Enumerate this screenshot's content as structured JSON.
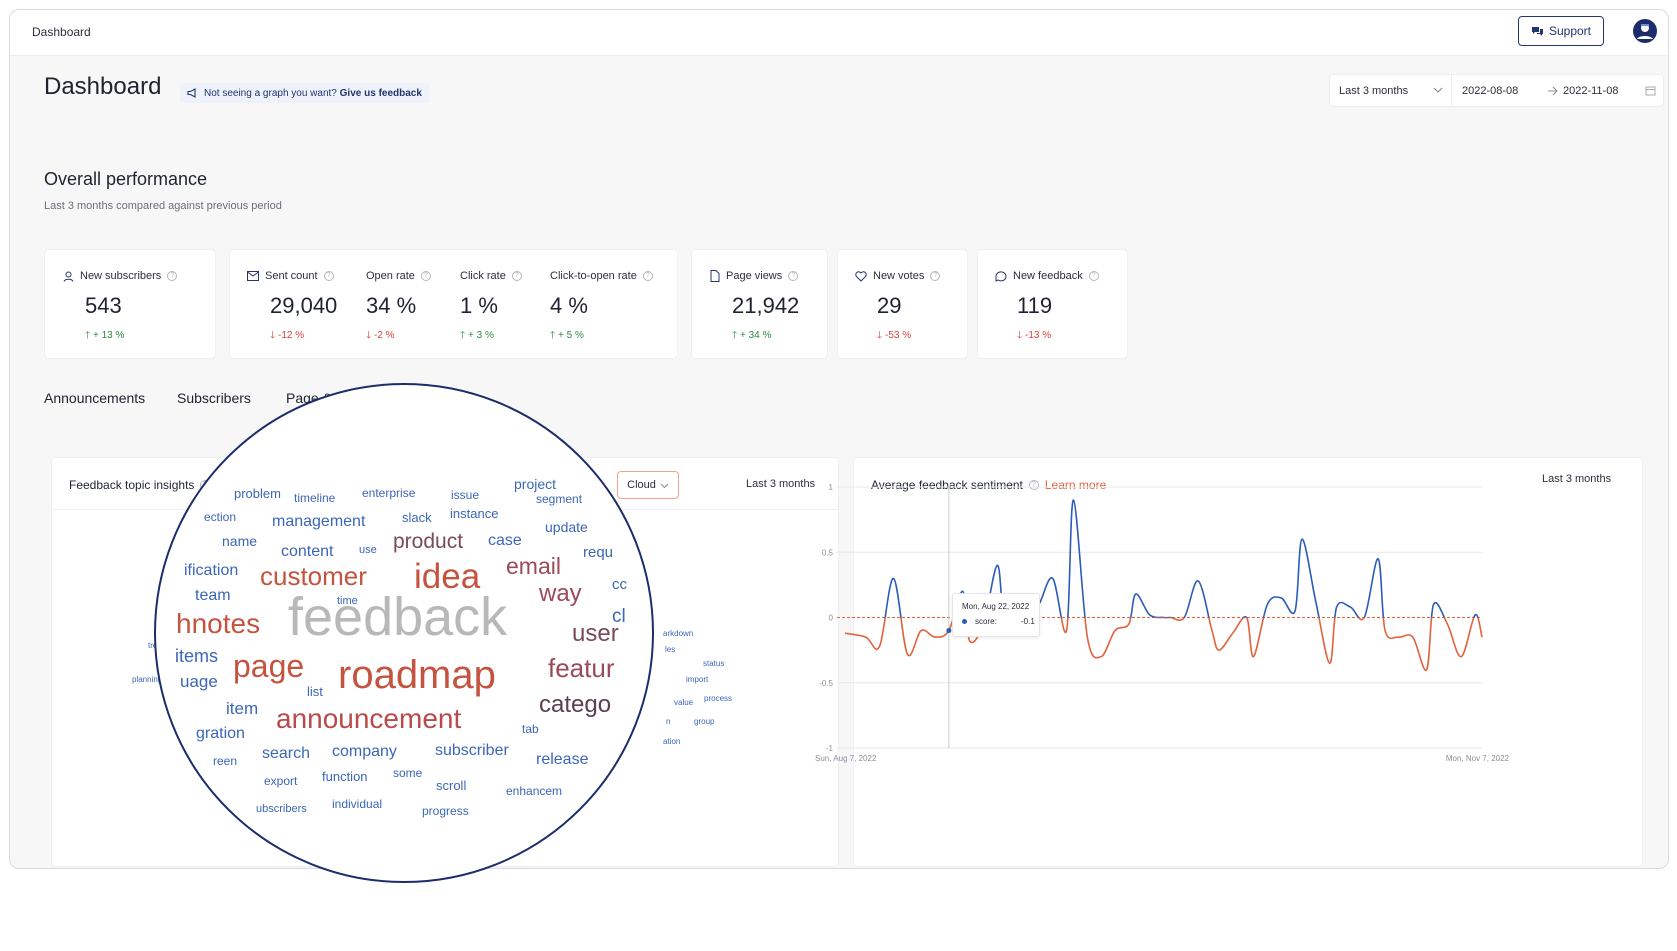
{
  "topbar": {
    "breadcrumb": "Dashboard",
    "support_label": "Support",
    "support_icon": "chat-bubbles-icon",
    "avatar_icon": "user-avatar-icon"
  },
  "header": {
    "title": "Dashboard",
    "note_prefix": "Not seeing a graph you want?",
    "note_link": "Give us feedback",
    "range_select": "Last 3 months",
    "date_from": "2022-08-08",
    "date_to": "2022-11-08"
  },
  "overview": {
    "title": "Overall performance",
    "subtitle": "Last 3 months compared against previous period",
    "metrics": [
      {
        "icon": "user-icon",
        "label": "New subscribers",
        "value": "543",
        "change": "+ 13 %",
        "direction": "up"
      },
      {
        "icon": "mail-icon",
        "label": "Sent count",
        "value": "29,040",
        "change": "-12 %",
        "direction": "down"
      },
      {
        "label": "Open rate",
        "value": "34 %",
        "change": "-2 %",
        "direction": "down"
      },
      {
        "label": "Click rate",
        "value": "1 %",
        "change": "+ 3 %",
        "direction": "up"
      },
      {
        "label": "Click-to-open rate",
        "value": "4 %",
        "change": "+ 5 %",
        "direction": "up"
      },
      {
        "icon": "page-icon",
        "label": "Page views",
        "value": "21,942",
        "change": "+ 34 %",
        "direction": "up"
      },
      {
        "icon": "heart-icon",
        "label": "New votes",
        "value": "29",
        "change": "-53 %",
        "direction": "down"
      },
      {
        "icon": "chat-icon",
        "label": "New feedback",
        "value": "119",
        "change": "-13 %",
        "direction": "down"
      }
    ]
  },
  "tabs": [
    "Announcements",
    "Subscribers",
    "Page & widget"
  ],
  "topic_panel": {
    "title": "Feedback topic insights",
    "view_select": "Cloud",
    "range": "Last 3 months",
    "outer_words": [
      "treatm",
      "planning",
      "w",
      "arkdown",
      "les",
      "status",
      "import",
      "process",
      "value",
      "group",
      "n",
      "ation"
    ],
    "words": [
      {
        "text": "project",
        "color": "#3c66b8"
      },
      {
        "text": "problem",
        "color": "#3c66b8"
      },
      {
        "text": "timeline",
        "color": "#3c66b8"
      },
      {
        "text": "enterprise",
        "color": "#3c66b8"
      },
      {
        "text": "issue",
        "color": "#3c66b8"
      },
      {
        "text": "segment",
        "color": "#3c66b8"
      },
      {
        "text": "ection",
        "color": "#3c66b8"
      },
      {
        "text": "management",
        "color": "#3c66b8"
      },
      {
        "text": "slack",
        "color": "#3c66b8"
      },
      {
        "text": "instance",
        "color": "#3c66b8"
      },
      {
        "text": "update",
        "color": "#3c66b8"
      },
      {
        "text": "name",
        "color": "#3c66b8"
      },
      {
        "text": "product",
        "color": "#7a4a5a"
      },
      {
        "text": "case",
        "color": "#3c66b8"
      },
      {
        "text": "content",
        "color": "#3c66b8"
      },
      {
        "text": "use",
        "color": "#3c66b8"
      },
      {
        "text": "requ",
        "color": "#3c66b8"
      },
      {
        "text": "ification",
        "color": "#3c66b8"
      },
      {
        "text": "email",
        "color": "#9a4a58"
      },
      {
        "text": "customer",
        "color": "#c4543f"
      },
      {
        "text": "idea",
        "color": "#c4543f"
      },
      {
        "text": "cc",
        "color": "#3c66b8"
      },
      {
        "text": "team",
        "color": "#3c66b8"
      },
      {
        "text": "way",
        "color": "#9a4a58"
      },
      {
        "text": "time",
        "color": "#3c66b8"
      },
      {
        "text": "cl",
        "color": "#3c66b8"
      },
      {
        "text": "hnotes",
        "color": "#c4543f"
      },
      {
        "text": "feedback",
        "color": "#b8b8b8"
      },
      {
        "text": "user",
        "color": "#7a4a5a"
      },
      {
        "text": "items",
        "color": "#3c66b8"
      },
      {
        "text": "page",
        "color": "#c4543f"
      },
      {
        "text": "featur",
        "color": "#9a4a58"
      },
      {
        "text": "uage",
        "color": "#3c66b8"
      },
      {
        "text": "roadmap",
        "color": "#c4543f"
      },
      {
        "text": "list",
        "color": "#3c66b8"
      },
      {
        "text": "item",
        "color": "#3c66b8"
      },
      {
        "text": "catego",
        "color": "#5a4050"
      },
      {
        "text": "announcement",
        "color": "#b84a4a"
      },
      {
        "text": "gration",
        "color": "#3c66b8"
      },
      {
        "text": "tab",
        "color": "#3c66b8"
      },
      {
        "text": "search",
        "color": "#3c66b8"
      },
      {
        "text": "company",
        "color": "#3c66b8"
      },
      {
        "text": "subscriber",
        "color": "#3c66b8"
      },
      {
        "text": "release",
        "color": "#3c66b8"
      },
      {
        "text": "reen",
        "color": "#3c66b8"
      },
      {
        "text": "function",
        "color": "#3c66b8"
      },
      {
        "text": "some",
        "color": "#3c66b8"
      },
      {
        "text": "export",
        "color": "#3c66b8"
      },
      {
        "text": "scroll",
        "color": "#3c66b8"
      },
      {
        "text": "enhancem",
        "color": "#3c66b8"
      },
      {
        "text": "ubscribers",
        "color": "#3c66b8"
      },
      {
        "text": "individual",
        "color": "#3c66b8"
      },
      {
        "text": "progress",
        "color": "#3c66b8"
      }
    ]
  },
  "sentiment_panel": {
    "title": "Average feedback sentiment",
    "learn_more": "Learn more",
    "range": "Last 3 months",
    "tooltip": {
      "date": "Mon, Aug 22, 2022",
      "label": "score:",
      "value": "-0.1"
    }
  },
  "chart_data": {
    "type": "line",
    "title": "Average feedback sentiment",
    "xlabel": "",
    "ylabel": "",
    "ylim": [
      -1,
      1
    ],
    "yticks": [
      "1",
      "0.5",
      "0",
      "-0.5",
      "-1"
    ],
    "x_start_label": "Sun, Aug 7, 2022",
    "x_end_label": "Mon, Nov 7, 2022",
    "x_start": "2022-08-07",
    "x_end": "2022-11-07",
    "positive_color": "#2a5cb8",
    "negative_color": "#e2623b",
    "zero_line": true,
    "grid": true,
    "series": [
      {
        "x": [
          "2022-08-07",
          "2022-08-10",
          "2022-08-12",
          "2022-08-14",
          "2022-08-16",
          "2022-08-18",
          "2022-08-20",
          "2022-08-22",
          "2022-08-24",
          "2022-08-25",
          "2022-08-27",
          "2022-08-29",
          "2022-08-30",
          "2022-09-01",
          "2022-09-02",
          "2022-09-04",
          "2022-09-06",
          "2022-09-08",
          "2022-09-09",
          "2022-09-11",
          "2022-09-13",
          "2022-09-15",
          "2022-09-17",
          "2022-09-18",
          "2022-09-20",
          "2022-09-22",
          "2022-09-23",
          "2022-09-25",
          "2022-09-27",
          "2022-09-29",
          "2022-09-30",
          "2022-10-02",
          "2022-10-04",
          "2022-10-05",
          "2022-10-07",
          "2022-10-09",
          "2022-10-11",
          "2022-10-12",
          "2022-10-14",
          "2022-10-16",
          "2022-10-17",
          "2022-10-19",
          "2022-10-21",
          "2022-10-23",
          "2022-10-24",
          "2022-10-26",
          "2022-10-28",
          "2022-10-30",
          "2022-10-31",
          "2022-11-02",
          "2022-11-04",
          "2022-11-06",
          "2022-11-07"
        ],
        "values": [
          -0.12,
          -0.15,
          -0.22,
          0.3,
          -0.28,
          -0.1,
          -0.15,
          -0.1,
          0.2,
          -0.18,
          -0.05,
          0.4,
          -0.02,
          -0.05,
          -0.02,
          0.1,
          0.3,
          -0.1,
          0.9,
          -0.15,
          -0.3,
          -0.1,
          -0.05,
          0.18,
          0.02,
          0.0,
          0.0,
          0.0,
          0.28,
          -0.1,
          -0.25,
          -0.12,
          0.0,
          -0.3,
          0.1,
          0.15,
          0.05,
          0.6,
          0.12,
          -0.35,
          0.08,
          0.08,
          0.0,
          0.45,
          -0.1,
          -0.15,
          -0.15,
          -0.4,
          0.1,
          -0.05,
          -0.3,
          0.02,
          -0.15
        ]
      }
    ]
  }
}
